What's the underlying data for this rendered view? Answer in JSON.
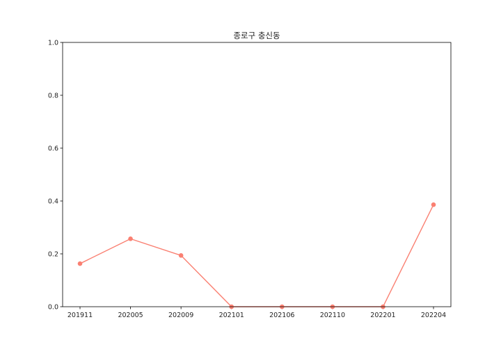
{
  "chart_data": {
    "type": "line",
    "title": "종로구 충신동",
    "xlabel": "",
    "ylabel": "",
    "categories": [
      "201911",
      "202005",
      "202009",
      "202101",
      "202106",
      "202110",
      "202201",
      "202204"
    ],
    "series": [
      {
        "values": [
          0.163,
          0.257,
          0.194,
          0.0,
          0.0,
          0.0,
          0.0,
          0.386
        ]
      }
    ],
    "ylim": [
      0,
      1.0
    ],
    "yticks": [
      "0.0",
      "0.2",
      "0.4",
      "0.6",
      "0.8",
      "1.0"
    ],
    "grid": false,
    "legend": "none",
    "colors": {
      "line": "#FA8072",
      "marker": "#FA8072",
      "axis": "#000000"
    }
  }
}
